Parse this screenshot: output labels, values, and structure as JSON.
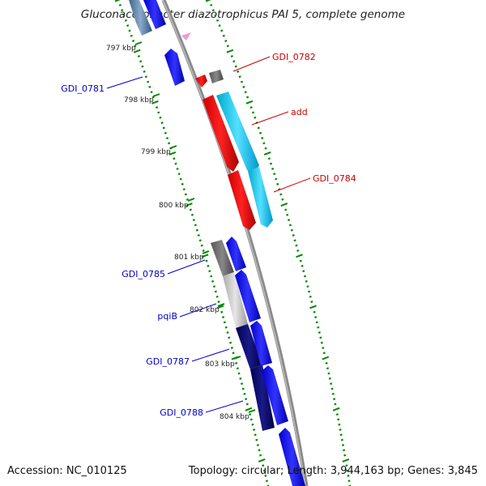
{
  "title": "Gluconacetobacter diazotrophicus PAI 5, complete genome",
  "footer": {
    "accession": "Accession: NC_010125",
    "topology": "Topology: circular; Length: 3,944,163 bp; Genes: 3,845"
  },
  "colors": {
    "backbone": "#888888",
    "forward_gene_label": "#cc0000",
    "reverse_gene_label": "#0000cc",
    "tick": "#008800",
    "forward_gene": "#ee0000",
    "reverse_gene": "#0000ee",
    "forward_rna": "#22ccee",
    "other_feature": "#777777",
    "reverse_dark": "#000066"
  },
  "position_labels": [
    "797 kbp",
    "798 kbp",
    "799 kbp",
    "800 kbp",
    "801 kbp",
    "802 kbp",
    "803 kbp",
    "804 kbp"
  ],
  "gene_labels": {
    "forward": [
      "GDI_0782",
      "add",
      "GDI_0784"
    ],
    "reverse": [
      "GDI_0781",
      "GDI_0785",
      "pqiB",
      "GDI_0787",
      "GDI_0788"
    ]
  }
}
